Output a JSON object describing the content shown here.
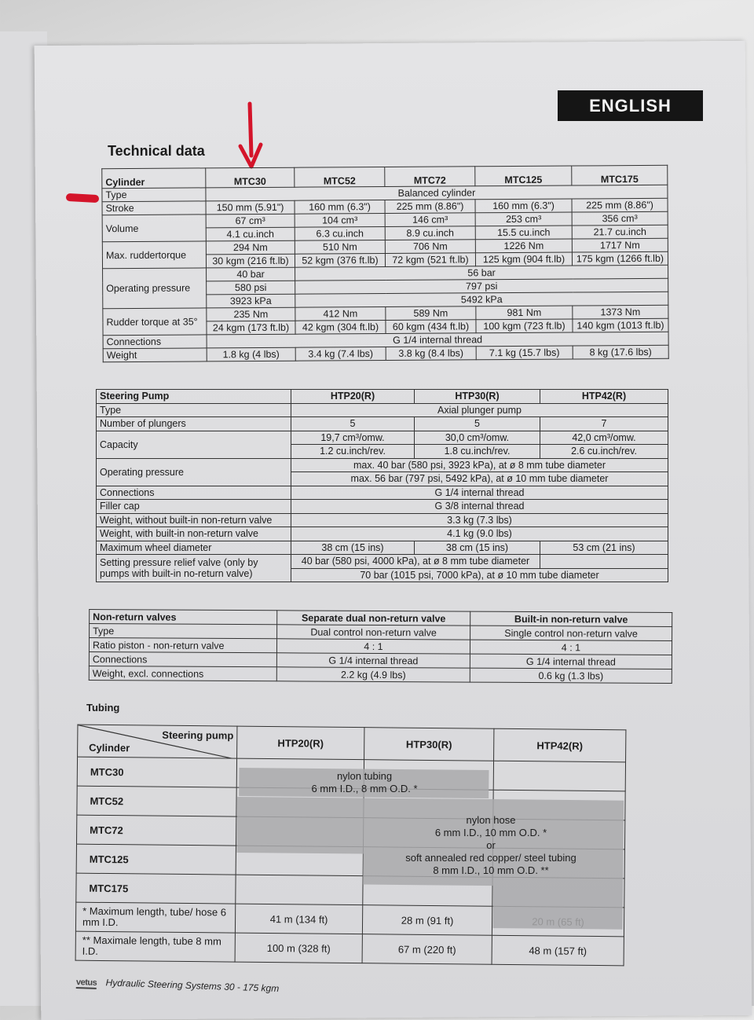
{
  "badge": "ENGLISH",
  "title": "Technical data",
  "annotation_colors": {
    "red_marker": "#d4142a"
  },
  "cylinder_table": {
    "header": [
      "Cylinder",
      "MTC30",
      "MTC52",
      "MTC72",
      "MTC125",
      "MTC175"
    ],
    "rows": [
      [
        {
          "label": "Type"
        },
        {
          "t": "Balanced cylinder",
          "cs": 5
        }
      ],
      [
        {
          "label": "Stroke"
        },
        "150 mm (5.91\")",
        "160 mm (6.3\")",
        "225 mm (8.86\")",
        "160 mm (6.3\")",
        "225 mm (8.86\")"
      ],
      [
        {
          "label": "Volume",
          "rs": 2
        },
        "67 cm³",
        "104 cm³",
        "146 cm³",
        "253 cm³",
        "356 cm³"
      ],
      [
        "4.1 cu.inch",
        "6.3 cu.inch",
        "8.9 cu.inch",
        "15.5 cu.inch",
        "21.7 cu.inch"
      ],
      [
        {
          "label": "Max. ruddertorque",
          "rs": 2
        },
        "294 Nm",
        "510 Nm",
        "706 Nm",
        "1226 Nm",
        "1717 Nm"
      ],
      [
        "30 kgm (216 ft.lb)",
        "52 kgm (376 ft.lb)",
        "72 kgm (521 ft.lb)",
        "125 kgm (904 ft.lb)",
        "175 kgm (1266 ft.lb)"
      ],
      [
        {
          "label": "Operating pressure",
          "rs": 3
        },
        "40 bar",
        {
          "t": "56 bar",
          "cs": 4
        }
      ],
      [
        "580 psi",
        {
          "t": "797 psi",
          "cs": 4
        }
      ],
      [
        "3923 kPa",
        {
          "t": "5492 kPa",
          "cs": 4
        }
      ],
      [
        {
          "label": "Rudder torque at 35°",
          "rs": 2
        },
        "235 Nm",
        "412 Nm",
        "589 Nm",
        "981 Nm",
        "1373 Nm"
      ],
      [
        "24 kgm (173 ft.lb)",
        "42 kgm (304 ft.lb)",
        "60 kgm (434 ft.lb)",
        "100 kgm (723 ft.lb)",
        "140 kgm (1013 ft.lb)"
      ],
      [
        {
          "label": "Connections"
        },
        {
          "t": "G 1/4 internal thread",
          "cs": 5
        }
      ],
      [
        {
          "label": "Weight"
        },
        "1.8 kg (4 lbs)",
        "3.4 kg (7.4 lbs)",
        "3.8 kg (8.4 lbs)",
        "7.1 kg (15.7 lbs)",
        "8 kg (17.6 lbs)"
      ]
    ]
  },
  "pump_table": {
    "header": [
      "Steering Pump",
      "HTP20(R)",
      "HTP30(R)",
      "HTP42(R)"
    ],
    "rows": [
      [
        {
          "label": "Type"
        },
        {
          "t": "Axial plunger pump",
          "cs": 3
        }
      ],
      [
        {
          "label": "Number of plungers"
        },
        "5",
        "5",
        "7"
      ],
      [
        {
          "label": "Capacity",
          "rs": 2
        },
        "19,7 cm³/omw.",
        "30,0 cm³/omw.",
        "42,0 cm³/omw."
      ],
      [
        "1.2 cu.inch/rev.",
        "1.8 cu.inch/rev.",
        "2.6 cu.inch/rev."
      ],
      [
        {
          "label": "Operating pressure",
          "rs": 2
        },
        {
          "t": "max. 40 bar (580 psi, 3923 kPa), at ø 8 mm tube diameter",
          "cs": 3
        }
      ],
      [
        {
          "t": "max. 56 bar (797 psi, 5492 kPa), at ø 10 mm tube diameter",
          "cs": 3
        }
      ],
      [
        {
          "label": "Connections"
        },
        {
          "t": "G 1/4 internal thread",
          "cs": 3
        }
      ],
      [
        {
          "label": "Filler cap"
        },
        {
          "t": "G 3/8 internal thread",
          "cs": 3
        }
      ],
      [
        {
          "label": "Weight, without built-in non-return valve"
        },
        {
          "t": "3.3 kg (7.3 lbs)",
          "cs": 3
        }
      ],
      [
        {
          "label": "Weight, with built-in non-return valve"
        },
        {
          "t": "4.1 kg (9.0 lbs)",
          "cs": 3
        }
      ],
      [
        {
          "label": "Maximum wheel diameter"
        },
        "38 cm (15 ins)",
        "38 cm (15 ins)",
        "53 cm (21 ins)"
      ],
      [
        {
          "label": "Setting pressure relief valve (only by pumps with built-in no-return valve)",
          "rs": 2
        },
        {
          "t": "40 bar (580 psi, 4000 kPa), at ø 8 mm tube diameter",
          "cs": 2
        },
        ""
      ],
      [
        {
          "t": "70 bar (1015 psi, 7000 kPa), at ø 10 mm tube diameter",
          "cs": 3
        }
      ]
    ]
  },
  "valve_table": {
    "header": [
      "Non-return valves",
      "Separate dual non-return valve",
      "Built-in non-return valve"
    ],
    "rows": [
      [
        {
          "label": "Type"
        },
        "Dual control non-return valve",
        "Single control non-return valve"
      ],
      [
        {
          "label": "Ratio piston - non-return valve"
        },
        "4 : 1",
        "4 : 1"
      ],
      [
        {
          "label": "Connections"
        },
        "G 1/4 internal thread",
        "G 1/4 internal thread"
      ],
      [
        {
          "label": "Weight, excl. connections"
        },
        "2.2 kg (4.9 lbs)",
        "0.6 kg (1.3 lbs)"
      ]
    ]
  },
  "tubing": {
    "label": "Tubing",
    "corner_top": "Steering pump",
    "corner_bottom": "Cylinder",
    "pumps": [
      "HTP20(R)",
      "HTP30(R)",
      "HTP42(R)"
    ],
    "cylinders": [
      "MTC30",
      "MTC52",
      "MTC72",
      "MTC125",
      "MTC175"
    ],
    "region_small": {
      "line1": "nylon tubing",
      "line2": "6 mm I.D., 8 mm O.D. *"
    },
    "region_large": {
      "line1": "nylon hose",
      "line2": "6 mm I.D., 10 mm O.D. *",
      "line3": "or",
      "line4": "soft annealed red copper/ steel tubing",
      "line5": "8 mm I.D., 10 mm O.D. **"
    },
    "shade_color": "#a9a9ab",
    "footnotes": [
      {
        "label": "*  Maximum length, tube/ hose 6 mm I.D.",
        "values": [
          "41 m (134 ft)",
          "28 m (91 ft)",
          "20 m (65 ft)"
        ]
      },
      {
        "label": "** Maximale length, tube 8 mm I.D.",
        "values": [
          "100 m (328 ft)",
          "67 m (220 ft)",
          "48 m (157 ft)"
        ]
      }
    ]
  },
  "footer": {
    "logo": "vetus",
    "text": "Hydraulic Steering Systems 30 - 175 kgm"
  }
}
